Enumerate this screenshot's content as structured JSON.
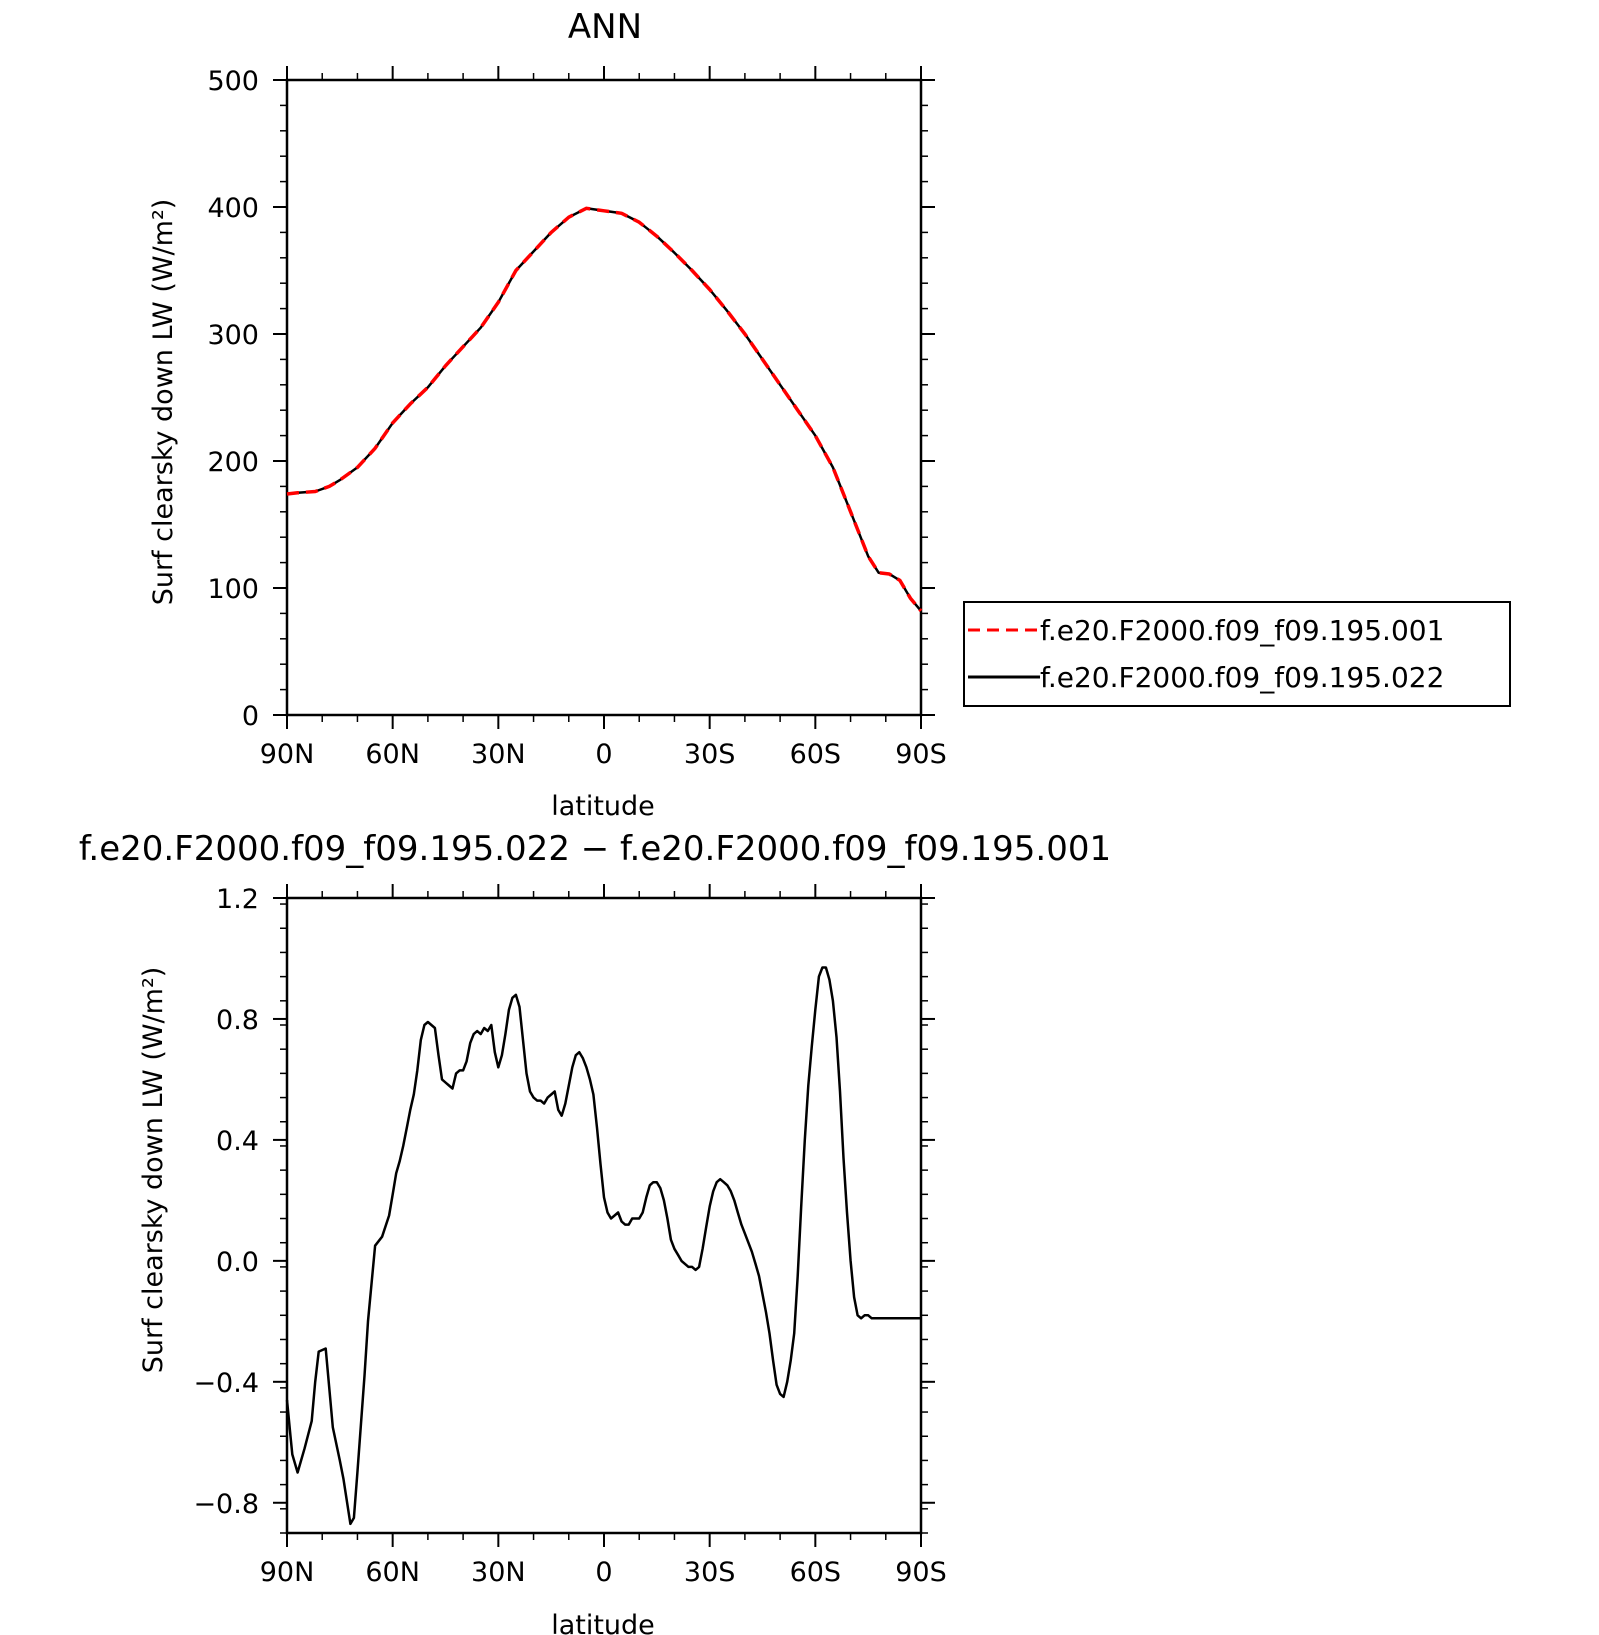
{
  "chart_data": [
    {
      "type": "line",
      "title": "ANN",
      "xlabel": "latitude",
      "ylabel": "Surf clearsky down LW (W/m²)",
      "xlim": [
        90,
        -90
      ],
      "ylim": [
        0,
        500
      ],
      "xticks": [
        {
          "value": 90,
          "label": "90N"
        },
        {
          "value": 60,
          "label": "60N"
        },
        {
          "value": 30,
          "label": "30N"
        },
        {
          "value": 0,
          "label": "0"
        },
        {
          "value": -30,
          "label": "30S"
        },
        {
          "value": -60,
          "label": "60S"
        },
        {
          "value": -90,
          "label": "90S"
        }
      ],
      "yticks": [
        0,
        100,
        200,
        300,
        400,
        500
      ],
      "legend_position": "right",
      "series": [
        {
          "name": "f.e20.F2000.f09_f09.195.001",
          "color": "#ff0000",
          "dash": true,
          "x": [
            90,
            87,
            82,
            78,
            75,
            70,
            65,
            60,
            55,
            50,
            45,
            40,
            35,
            30,
            25,
            20,
            15,
            10,
            5,
            0,
            -5,
            -10,
            -15,
            -20,
            -25,
            -30,
            -35,
            -40,
            -45,
            -50,
            -55,
            -60,
            -65,
            -70,
            -75,
            -78,
            -81,
            -84,
            -87,
            -90
          ],
          "y": [
            174,
            175,
            176,
            180,
            185,
            195,
            210,
            230,
            245,
            258,
            275,
            290,
            305,
            325,
            350,
            365,
            380,
            392,
            399,
            397,
            395,
            388,
            377,
            364,
            350,
            335,
            318,
            300,
            280,
            260,
            240,
            220,
            195,
            160,
            125,
            112,
            111,
            106,
            92,
            82
          ]
        },
        {
          "name": "f.e20.F2000.f09_f09.195.022",
          "color": "#000000",
          "dash": false,
          "x": [
            90,
            87,
            82,
            78,
            75,
            70,
            65,
            60,
            55,
            50,
            45,
            40,
            35,
            30,
            25,
            20,
            15,
            10,
            5,
            0,
            -5,
            -10,
            -15,
            -20,
            -25,
            -30,
            -35,
            -40,
            -45,
            -50,
            -55,
            -60,
            -65,
            -70,
            -75,
            -78,
            -81,
            -84,
            -87,
            -90
          ],
          "y": [
            174,
            175,
            176,
            180,
            185,
            195,
            210,
            230,
            245,
            258,
            275,
            290,
            305,
            325,
            350,
            365,
            380,
            392,
            399,
            397,
            395,
            388,
            377,
            364,
            350,
            335,
            318,
            300,
            280,
            260,
            240,
            220,
            195,
            160,
            125,
            112,
            111,
            106,
            92,
            82
          ]
        }
      ]
    },
    {
      "type": "line",
      "title": "f.e20.F2000.f09_f09.195.022 − f.e20.F2000.f09_f09.195.001",
      "xlabel": "latitude",
      "ylabel": "Surf clearsky down LW (W/m²)",
      "xlim": [
        90,
        -90
      ],
      "ylim": [
        -0.9,
        1.2
      ],
      "xticks": [
        {
          "value": 90,
          "label": "90N"
        },
        {
          "value": 60,
          "label": "60N"
        },
        {
          "value": 30,
          "label": "30N"
        },
        {
          "value": 0,
          "label": "0"
        },
        {
          "value": -30,
          "label": "30S"
        },
        {
          "value": -60,
          "label": "60S"
        },
        {
          "value": -90,
          "label": "90S"
        }
      ],
      "yticks": [
        {
          "value": 1.2,
          "label": "1.2"
        },
        {
          "value": 0.8,
          "label": "0.8"
        },
        {
          "value": 0.4,
          "label": "0.4"
        },
        {
          "value": 0.0,
          "label": "0.0"
        },
        {
          "value": -0.4,
          "label": "−0.4"
        },
        {
          "value": -0.8,
          "label": "−0.8"
        }
      ],
      "series": [
        {
          "color": "#000000",
          "x": [
            90,
            89,
            88.5,
            87,
            85,
            83,
            82,
            81,
            79,
            77,
            75,
            74,
            72,
            71,
            70,
            68,
            67,
            65,
            63,
            61,
            60,
            59,
            58,
            57,
            56,
            55,
            54,
            53,
            52,
            51,
            50,
            49,
            48,
            47,
            46,
            45,
            44,
            43,
            42,
            41,
            40,
            39,
            38,
            37,
            36,
            35,
            34,
            33,
            32,
            31,
            30,
            29,
            28,
            27,
            26,
            25,
            24,
            23,
            22,
            21,
            20,
            19,
            18,
            17,
            16,
            15,
            14,
            13,
            12,
            11,
            10,
            9,
            8,
            7,
            6,
            5,
            4,
            3,
            2,
            1,
            0,
            -1,
            -2,
            -3,
            -4,
            -5,
            -6,
            -7,
            -8,
            -9,
            -10,
            -11,
            -12,
            -13,
            -14,
            -15,
            -16,
            -17,
            -18,
            -19,
            -20,
            -21,
            -22,
            -23,
            -24,
            -25,
            -26,
            -27,
            -28,
            -29,
            -30,
            -31,
            -32,
            -33,
            -34,
            -35,
            -36,
            -37,
            -38,
            -39,
            -40,
            -41,
            -42,
            -43,
            -44,
            -45,
            -46,
            -47,
            -48,
            -49,
            -50,
            -51,
            -52,
            -53,
            -54,
            -55,
            -56,
            -57,
            -58,
            -59,
            -60,
            -61,
            -62,
            -63,
            -64,
            -65,
            -66,
            -67,
            -68,
            -69,
            -70,
            -71,
            -72,
            -73,
            -74,
            -75,
            -76,
            -77,
            -78,
            -79,
            -80,
            -81,
            -82,
            -83,
            -84,
            -85,
            -86,
            -87,
            -88,
            -89,
            -90
          ],
          "y": [
            -0.46,
            -0.58,
            -0.64,
            -0.7,
            -0.62,
            -0.53,
            -0.4,
            -0.3,
            -0.29,
            -0.55,
            -0.66,
            -0.72,
            -0.87,
            -0.85,
            -0.7,
            -0.38,
            -0.2,
            0.05,
            0.08,
            0.15,
            0.22,
            0.29,
            0.33,
            0.38,
            0.44,
            0.5,
            0.55,
            0.63,
            0.73,
            0.78,
            0.79,
            0.78,
            0.77,
            0.68,
            0.6,
            0.59,
            0.58,
            0.57,
            0.62,
            0.63,
            0.63,
            0.66,
            0.72,
            0.75,
            0.76,
            0.75,
            0.77,
            0.76,
            0.78,
            0.69,
            0.64,
            0.68,
            0.75,
            0.83,
            0.87,
            0.88,
            0.84,
            0.73,
            0.62,
            0.56,
            0.54,
            0.53,
            0.53,
            0.52,
            0.54,
            0.55,
            0.56,
            0.5,
            0.48,
            0.52,
            0.58,
            0.64,
            0.68,
            0.69,
            0.67,
            0.64,
            0.6,
            0.55,
            0.44,
            0.32,
            0.21,
            0.16,
            0.14,
            0.15,
            0.16,
            0.13,
            0.12,
            0.12,
            0.14,
            0.14,
            0.14,
            0.16,
            0.21,
            0.25,
            0.26,
            0.26,
            0.24,
            0.2,
            0.14,
            0.07,
            0.04,
            0.02,
            0.0,
            -0.01,
            -0.02,
            -0.02,
            -0.03,
            -0.02,
            0.04,
            0.11,
            0.18,
            0.23,
            0.26,
            0.27,
            0.26,
            0.25,
            0.23,
            0.2,
            0.16,
            0.12,
            0.09,
            0.06,
            0.03,
            -0.01,
            -0.05,
            -0.11,
            -0.17,
            -0.24,
            -0.33,
            -0.41,
            -0.44,
            -0.45,
            -0.4,
            -0.33,
            -0.24,
            -0.05,
            0.18,
            0.4,
            0.58,
            0.71,
            0.83,
            0.94,
            0.97,
            0.97,
            0.93,
            0.86,
            0.74,
            0.56,
            0.34,
            0.16,
            0.0,
            -0.12,
            -0.18,
            -0.19,
            -0.18,
            -0.18,
            -0.19,
            -0.19,
            -0.19,
            -0.19,
            -0.19,
            -0.19,
            -0.19,
            -0.19,
            -0.19,
            -0.19,
            -0.19,
            -0.19,
            -0.19,
            -0.19,
            -0.19
          ]
        }
      ]
    }
  ]
}
